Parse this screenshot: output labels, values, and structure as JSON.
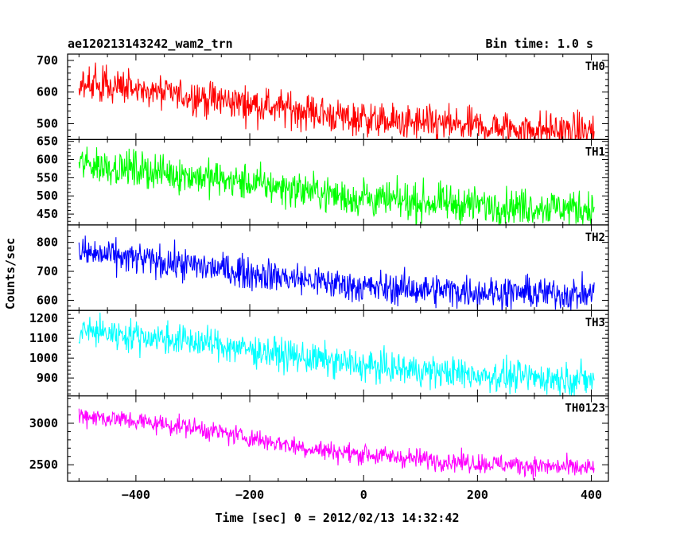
{
  "header": {
    "title": "ae120213143242_wam2_trn",
    "bin_time": "Bin time: 1.0 s"
  },
  "chart_data": {
    "type": "line",
    "title": "ae120213143242_wam2_trn",
    "subtitle": "Bin time: 1.0 s",
    "xlabel": "Time [sec] 0 = 2012/02/13 14:32:42",
    "ylabel": "Counts/sec",
    "xlim": [
      -520,
      430
    ],
    "x_ticks": [
      -400,
      -200,
      0,
      200,
      400
    ],
    "x_range_data": [
      -500,
      405
    ],
    "grid": false,
    "panels": [
      {
        "name": "TH0",
        "color": "#ff0000",
        "ylim": [
          450,
          720
        ],
        "y_ticks": [
          500,
          600,
          700
        ],
        "trend": [
          [
            -500,
            630
          ],
          [
            -300,
            585
          ],
          [
            -100,
            540
          ],
          [
            0,
            510
          ],
          [
            200,
            490
          ],
          [
            405,
            475
          ]
        ],
        "noise": 28,
        "features": [
          [
            0,
            35
          ]
        ]
      },
      {
        "name": "TH1",
        "color": "#00ff00",
        "ylim": [
          420,
          655
        ],
        "y_ticks": [
          450,
          500,
          550,
          600,
          650
        ],
        "trend": [
          [
            -500,
            590
          ],
          [
            -300,
            555
          ],
          [
            -100,
            515
          ],
          [
            0,
            490
          ],
          [
            200,
            475
          ],
          [
            405,
            465
          ]
        ],
        "noise": 25,
        "features": [
          [
            0,
            25
          ]
        ]
      },
      {
        "name": "TH2",
        "color": "#0000ff",
        "ylim": [
          565,
          860
        ],
        "y_ticks": [
          600,
          700,
          800
        ],
        "trend": [
          [
            -500,
            765
          ],
          [
            -300,
            720
          ],
          [
            -100,
            670
          ],
          [
            0,
            645
          ],
          [
            200,
            630
          ],
          [
            405,
            620
          ]
        ],
        "noise": 28,
        "features": []
      },
      {
        "name": "TH3",
        "color": "#00ffff",
        "ylim": [
          810,
          1240
        ],
        "y_ticks": [
          900,
          1000,
          1100,
          1200
        ],
        "trend": [
          [
            -500,
            1140
          ],
          [
            -300,
            1085
          ],
          [
            -100,
            1000
          ],
          [
            0,
            960
          ],
          [
            200,
            915
          ],
          [
            405,
            890
          ]
        ],
        "noise": 40,
        "features": []
      },
      {
        "name": "TH0123",
        "color": "#ff00ff",
        "ylim": [
          2300,
          3330
        ],
        "y_ticks": [
          2500,
          3000
        ],
        "trend": [
          [
            -500,
            3100
          ],
          [
            -300,
            2950
          ],
          [
            -100,
            2700
          ],
          [
            0,
            2620
          ],
          [
            200,
            2520
          ],
          [
            405,
            2450
          ]
        ],
        "noise": 60,
        "features": [
          [
            0,
            60
          ]
        ]
      }
    ]
  }
}
